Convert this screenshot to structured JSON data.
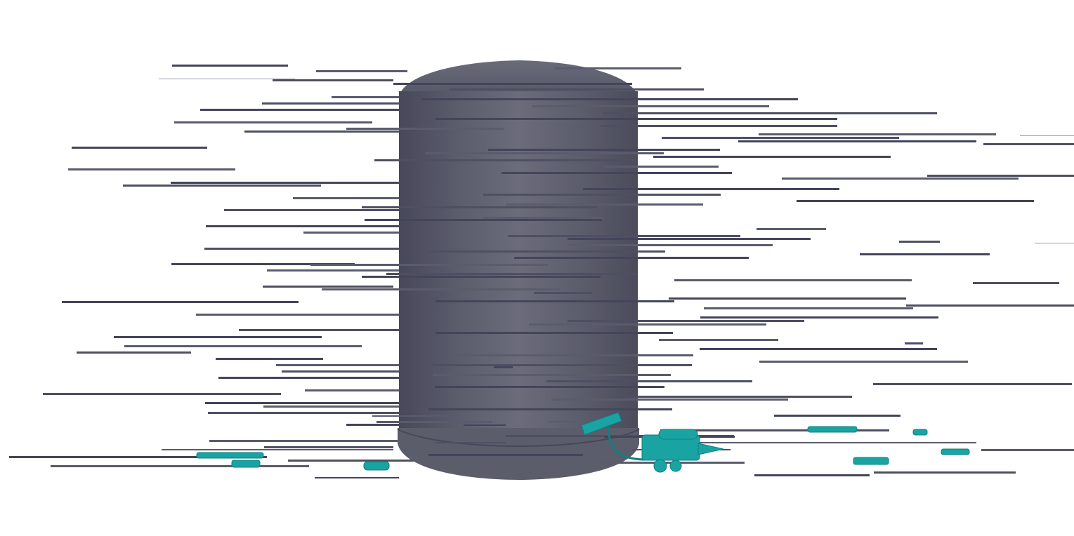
{
  "viewport": {
    "background_color": "#ffffff"
  },
  "scene": {
    "objects": [
      {
        "name": "storage-tank",
        "kind": "cylinder",
        "color": "#5d5e6c"
      },
      {
        "name": "streak-lines",
        "kind": "horizontal-lines",
        "color": "#4f5060"
      },
      {
        "name": "equipment-cart",
        "kind": "machinery",
        "color": "#1aa3a3"
      }
    ]
  }
}
